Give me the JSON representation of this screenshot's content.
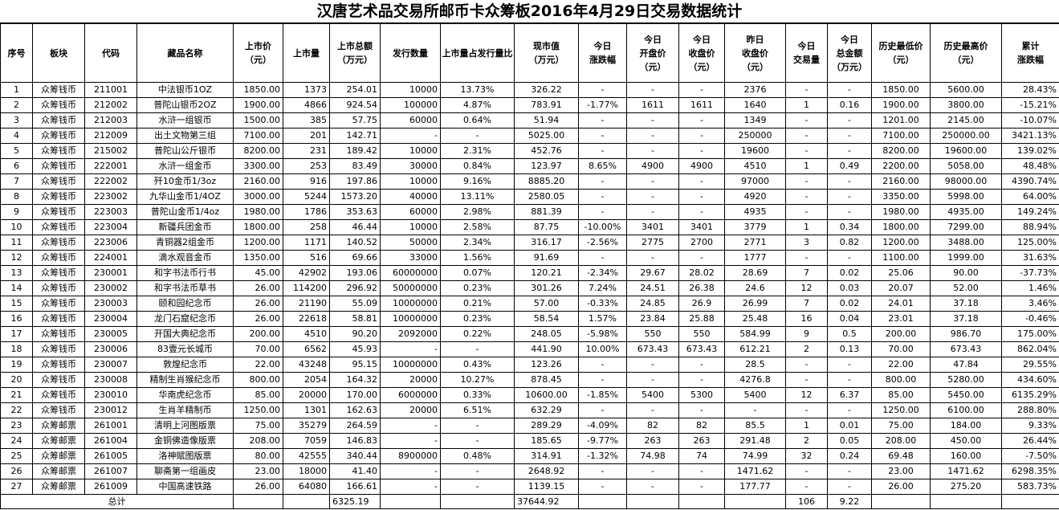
{
  "title": "汉唐艺术品交易所邮币卡众筹板2016年4月29日交易数据统计",
  "headers": [
    "序号",
    "板块",
    "代码",
    "藏品名称",
    "上市价\n（元）",
    "上市量",
    "上市总额\n（万元）",
    "发行数量",
    "上市量占发行量比",
    "现市值\n（万元）",
    "今日\n涨跌幅",
    "今日\n开盘价\n（元）",
    "今日\n收盘价\n（元）",
    "昨日\n收盘价\n（元）",
    "今日\n交易量",
    "今日\n总金额\n（万元）",
    "历史最低价\n（元）",
    "历史最高价\n（元）",
    "累计\n涨跌幅"
  ],
  "rows": [
    [
      "1",
      "众筹钱币",
      "211001",
      "中法银币1OZ",
      "1850.00",
      "1373",
      "254.01",
      "10000",
      "13.73%",
      "326.22",
      "-",
      "-",
      "-",
      "2376",
      "-",
      "-",
      "1850.00",
      "5600.00",
      "28.43%"
    ],
    [
      "2",
      "众筹钱币",
      "212002",
      "普陀山银币2OZ",
      "1900.00",
      "4866",
      "924.54",
      "100000",
      "4.87%",
      "783.91",
      "-1.77%",
      "1611",
      "1611",
      "1640",
      "1",
      "0.16",
      "1900.00",
      "3800.00",
      "-15.21%"
    ],
    [
      "3",
      "众筹钱币",
      "212003",
      "水浒一组银币",
      "1500.00",
      "385",
      "57.75",
      "60000",
      "0.64%",
      "51.94",
      "-",
      "-",
      "-",
      "1349",
      "-",
      "-",
      "1201.00",
      "2145.00",
      "-10.07%"
    ],
    [
      "4",
      "众筹钱币",
      "212009",
      "出土文物第三组",
      "7100.00",
      "201",
      "142.71",
      "-",
      "-",
      "5025.00",
      "-",
      "-",
      "-",
      "250000",
      "-",
      "-",
      "7100.00",
      "250000.00",
      "3421.13%"
    ],
    [
      "5",
      "众筹钱币",
      "215002",
      "普陀山公斤银币",
      "8200.00",
      "231",
      "189.42",
      "10000",
      "2.31%",
      "452.76",
      "-",
      "-",
      "-",
      "19600",
      "-",
      "-",
      "8200.00",
      "19600.00",
      "139.02%"
    ],
    [
      "6",
      "众筹钱币",
      "222001",
      "水浒一组金币",
      "3300.00",
      "253",
      "83.49",
      "30000",
      "0.84%",
      "123.97",
      "8.65%",
      "4900",
      "4900",
      "4510",
      "1",
      "0.49",
      "2200.00",
      "5058.00",
      "48.48%"
    ],
    [
      "7",
      "众筹钱币",
      "222002",
      "歼10金币1/3oz",
      "2160.00",
      "916",
      "197.86",
      "10000",
      "9.16%",
      "8885.20",
      "-",
      "-",
      "-",
      "97000",
      "-",
      "-",
      "2160.00",
      "98000.00",
      "4390.74%"
    ],
    [
      "8",
      "众筹钱币",
      "223002",
      "九华山金币1/4OZ",
      "3000.00",
      "5244",
      "1573.20",
      "40000",
      "13.11%",
      "2580.05",
      "-",
      "-",
      "-",
      "4920",
      "-",
      "-",
      "3350.00",
      "5998.00",
      "64.00%"
    ],
    [
      "9",
      "众筹钱币",
      "223003",
      "普陀山金币1/4oz",
      "1980.00",
      "1786",
      "353.63",
      "60000",
      "2.98%",
      "881.39",
      "-",
      "-",
      "-",
      "4935",
      "-",
      "-",
      "1980.00",
      "4935.00",
      "149.24%"
    ],
    [
      "10",
      "众筹钱币",
      "223004",
      "新疆兵团金币",
      "1800.00",
      "258",
      "46.44",
      "10000",
      "2.58%",
      "87.75",
      "-10.00%",
      "3401",
      "3401",
      "3779",
      "1",
      "0.34",
      "1800.00",
      "7299.00",
      "88.94%"
    ],
    [
      "11",
      "众筹钱币",
      "223006",
      "青铜器2组金币",
      "1200.00",
      "1171",
      "140.52",
      "50000",
      "2.34%",
      "316.17",
      "-2.56%",
      "2775",
      "2700",
      "2771",
      "3",
      "0.82",
      "1200.00",
      "3488.00",
      "125.00%"
    ],
    [
      "12",
      "众筹钱币",
      "224001",
      "滴水观音金币",
      "1350.00",
      "516",
      "69.66",
      "33000",
      "1.56%",
      "91.69",
      "-",
      "-",
      "-",
      "1777",
      "-",
      "-",
      "1100.00",
      "1999.00",
      "31.63%"
    ],
    [
      "13",
      "众筹钱币",
      "230001",
      "和字书法币行书",
      "45.00",
      "42902",
      "193.06",
      "60000000",
      "0.07%",
      "120.21",
      "-2.34%",
      "29.67",
      "28.02",
      "28.69",
      "7",
      "0.02",
      "25.06",
      "90.00",
      "-37.73%"
    ],
    [
      "14",
      "众筹钱币",
      "230002",
      "和字书法币草书",
      "26.00",
      "114200",
      "296.92",
      "50000000",
      "0.23%",
      "301.26",
      "7.24%",
      "24.51",
      "26.38",
      "24.6",
      "12",
      "0.03",
      "20.07",
      "52.00",
      "1.46%"
    ],
    [
      "15",
      "众筹钱币",
      "230003",
      "颐和园纪念币",
      "26.00",
      "21190",
      "55.09",
      "10000000",
      "0.21%",
      "57.00",
      "-0.33%",
      "24.85",
      "26.9",
      "26.99",
      "7",
      "0.02",
      "24.01",
      "37.18",
      "3.46%"
    ],
    [
      "16",
      "众筹钱币",
      "230004",
      "龙门石窟纪念币",
      "26.00",
      "22618",
      "58.81",
      "10000000",
      "0.23%",
      "58.54",
      "1.57%",
      "23.84",
      "25.88",
      "25.48",
      "16",
      "0.04",
      "23.01",
      "37.18",
      "-0.46%"
    ],
    [
      "17",
      "众筹钱币",
      "230005",
      "开国大典纪念币",
      "200.00",
      "4510",
      "90.20",
      "2092000",
      "0.22%",
      "248.05",
      "-5.98%",
      "550",
      "550",
      "584.99",
      "9",
      "0.5",
      "200.00",
      "986.70",
      "175.00%"
    ],
    [
      "18",
      "众筹钱币",
      "230006",
      "83壹元长城币",
      "70.00",
      "6562",
      "45.93",
      "-",
      "-",
      "441.90",
      "10.00%",
      "673.43",
      "673.43",
      "612.21",
      "2",
      "0.13",
      "70.00",
      "673.43",
      "862.04%"
    ],
    [
      "19",
      "众筹钱币",
      "230007",
      "敦煌纪念币",
      "22.00",
      "43248",
      "95.15",
      "10000000",
      "0.43%",
      "123.26",
      "-",
      "-",
      "-",
      "28.5",
      "-",
      "-",
      "22.00",
      "47.84",
      "29.55%"
    ],
    [
      "20",
      "众筹钱币",
      "230008",
      "精制生肖猴纪念币",
      "800.00",
      "2054",
      "164.32",
      "20000",
      "10.27%",
      "878.45",
      "-",
      "-",
      "-",
      "4276.8",
      "-",
      "-",
      "800.00",
      "5280.00",
      "434.60%"
    ],
    [
      "21",
      "众筹钱币",
      "230010",
      "华南虎纪念币",
      "85.00",
      "20000",
      "170.00",
      "6000000",
      "0.33%",
      "10600.00",
      "-1.85%",
      "5400",
      "5300",
      "5400",
      "12",
      "6.37",
      "85.00",
      "5450.00",
      "6135.29%"
    ],
    [
      "22",
      "众筹钱币",
      "230012",
      "生肖羊精制币",
      "1250.00",
      "1301",
      "162.63",
      "20000",
      "6.51%",
      "632.29",
      "-",
      "-",
      "-",
      "-",
      "-",
      "-",
      "1250.00",
      "6100.00",
      "288.80%"
    ],
    [
      "23",
      "众筹邮票",
      "261001",
      "清明上河图版票",
      "75.00",
      "35279",
      "264.59",
      "-",
      "-",
      "289.29",
      "-4.09%",
      "82",
      "82",
      "85.5",
      "1",
      "0.01",
      "75.00",
      "184.00",
      "9.33%"
    ],
    [
      "24",
      "众筹邮票",
      "261004",
      "金铜佛造像版票",
      "208.00",
      "7059",
      "146.83",
      "-",
      "-",
      "185.65",
      "-9.77%",
      "263",
      "263",
      "291.48",
      "2",
      "0.05",
      "208.00",
      "450.00",
      "26.44%"
    ],
    [
      "25",
      "众筹邮票",
      "261005",
      "洛神赋图版票",
      "80.00",
      "42555",
      "340.44",
      "8900000",
      "0.48%",
      "314.91",
      "-1.32%",
      "74.98",
      "74",
      "74.99",
      "32",
      "0.24",
      "69.48",
      "160.00",
      "-7.50%"
    ],
    [
      "26",
      "众筹邮票",
      "261007",
      "聊斋第一组画皮",
      "23.00",
      "18000",
      "41.40",
      "-",
      "-",
      "2648.92",
      "-",
      "-",
      "-",
      "1471.62",
      "-",
      "-",
      "23.00",
      "1471.62",
      "6298.35%"
    ],
    [
      "27",
      "众筹邮票",
      "261009",
      "中国高速铁路",
      "26.00",
      "64080",
      "166.61",
      "-",
      "-",
      "1139.15",
      "-",
      "-",
      "-",
      "177.77",
      "-",
      "-",
      "26.00",
      "275.20",
      "583.73%"
    ]
  ],
  "totals": {
    "label": "总计",
    "total_listing_amount": "6325.19",
    "market_value": "37644.92",
    "volume": "106",
    "amount": "9.22"
  }
}
